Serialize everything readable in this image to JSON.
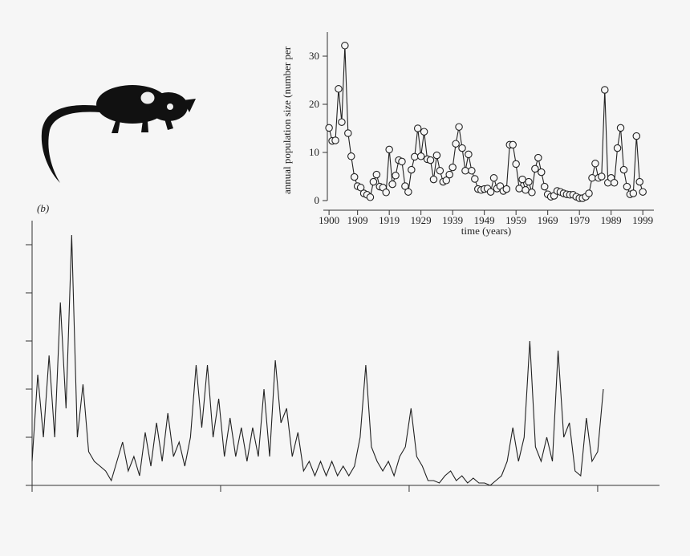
{
  "chart_data": [
    {
      "type": "line",
      "markers": true,
      "y_label": "annual population size (number per",
      "x_label": "time (years)",
      "x": [
        1900,
        1901,
        1902,
        1903,
        1904,
        1905,
        1906,
        1907,
        1908,
        1909,
        1910,
        1911,
        1912,
        1913,
        1914,
        1915,
        1916,
        1917,
        1918,
        1919,
        1920,
        1921,
        1922,
        1923,
        1924,
        1925,
        1926,
        1927,
        1928,
        1929,
        1930,
        1931,
        1932,
        1933,
        1934,
        1935,
        1936,
        1937,
        1938,
        1939,
        1940,
        1941,
        1942,
        1943,
        1944,
        1945,
        1946,
        1947,
        1948,
        1949,
        1950,
        1951,
        1952,
        1953,
        1954,
        1955,
        1956,
        1957,
        1958,
        1959,
        1960,
        1961,
        1962,
        1963,
        1964,
        1965,
        1966,
        1967,
        1968,
        1969,
        1970,
        1971,
        1972,
        1973,
        1974,
        1975,
        1976,
        1977,
        1978,
        1979,
        1980,
        1981,
        1982,
        1983,
        1984,
        1985,
        1986,
        1987,
        1988,
        1989,
        1990,
        1991,
        1992,
        1993,
        1994,
        1995,
        1996,
        1997,
        1998,
        1999
      ],
      "values": [
        15.1,
        12.4,
        12.5,
        23.2,
        16.3,
        32.2,
        14,
        9.2,
        4.9,
        3.0,
        2.7,
        1.5,
        1.2,
        0.7,
        3.9,
        5.4,
        2.9,
        2.7,
        1.7,
        10.6,
        3.4,
        5.2,
        8.4,
        8.1,
        3.0,
        1.8,
        6.4,
        9.1,
        15,
        9.2,
        14.3,
        8.6,
        8.4,
        4.4,
        9.4,
        6.2,
        3.9,
        4.2,
        5.4,
        6.9,
        11.8,
        15.3,
        10.9,
        6.2,
        9.6,
        6.2,
        4.5,
        2.4,
        2.2,
        2.4,
        2.5,
        1.8,
        4.7,
        2.5,
        3.0,
        2.0,
        2.4,
        11.6,
        11.6,
        7.6,
        2.5,
        4.4,
        2.2,
        3.9,
        1.7,
        6.6,
        8.9,
        5.9,
        2.9,
        1.3,
        0.8,
        1.0,
        2.0,
        1.8,
        1.5,
        1.3,
        1.2,
        1.2,
        0.8,
        0.5,
        0.5,
        0.8,
        1.5,
        4.7,
        7.7,
        4.7,
        5.0,
        23.0,
        3.7,
        4.7,
        3.7,
        10.9,
        15.1,
        6.4,
        2.9,
        1.3,
        1.5,
        13.4,
        3.9,
        1.8
      ],
      "xlim": [
        1898.2,
        2002.5
      ],
      "ylim": [
        0,
        35
      ],
      "xticks": [
        1900,
        1909,
        1919,
        1929,
        1939,
        1949,
        1959,
        1969,
        1979,
        1989,
        1999
      ],
      "yticks": [
        0,
        10,
        20,
        30
      ],
      "tick_labels": true,
      "color": "#222222"
    },
    {
      "type": "line",
      "markers": false,
      "panel_label": "(b)",
      "x": [
        0,
        3,
        6,
        9,
        12,
        15,
        18,
        21,
        24,
        27,
        30,
        33,
        36,
        39,
        42,
        45,
        48,
        51,
        54,
        57,
        60,
        63,
        66,
        69,
        72,
        75,
        78,
        81,
        84,
        87,
        90,
        93,
        96,
        99,
        102,
        105,
        108,
        111,
        114,
        117,
        120,
        123,
        126,
        129,
        132,
        135,
        138,
        141,
        144,
        147,
        150,
        153,
        156,
        159,
        162,
        165,
        168,
        171,
        174,
        177,
        180,
        183,
        186,
        189,
        192,
        195,
        198,
        201,
        204,
        207,
        210,
        213,
        216,
        219,
        222,
        225,
        228,
        231,
        234,
        237,
        240,
        243,
        246,
        249,
        252,
        255,
        258,
        261,
        264,
        267,
        270,
        273,
        276,
        279,
        282,
        285,
        288,
        291,
        294,
        297,
        300,
        303
      ],
      "values": [
        0.5,
        2.3,
        1.0,
        2.7,
        1.0,
        3.8,
        1.6,
        5.2,
        1.0,
        2.1,
        0.7,
        0.5,
        0.4,
        0.3,
        0.1,
        0.5,
        0.9,
        0.3,
        0.6,
        0.2,
        1.1,
        0.4,
        1.3,
        0.5,
        1.5,
        0.6,
        0.9,
        0.4,
        1.0,
        2.5,
        1.2,
        2.5,
        1.0,
        1.8,
        0.6,
        1.4,
        0.6,
        1.2,
        0.5,
        1.2,
        0.6,
        2.0,
        0.6,
        2.6,
        1.3,
        1.6,
        0.6,
        1.1,
        0.3,
        0.5,
        0.2,
        0.5,
        0.2,
        0.5,
        0.2,
        0.4,
        0.2,
        0.4,
        1.0,
        2.5,
        0.8,
        0.5,
        0.3,
        0.5,
        0.2,
        0.6,
        0.8,
        1.6,
        0.6,
        0.4,
        0.1,
        0.1,
        0.05,
        0.2,
        0.3,
        0.1,
        0.2,
        0.05,
        0.15,
        0.05,
        0.05,
        0,
        0.1,
        0.2,
        0.5,
        1.2,
        0.5,
        1.0,
        3.0,
        0.8,
        0.5,
        1.0,
        0.5,
        2.8,
        1.0,
        1.3,
        0.3,
        0.2,
        1.4,
        0.5,
        0.7,
        2.0
      ],
      "xlim": [
        0,
        332.8
      ],
      "ylim": [
        0,
        5.5
      ],
      "xticks": [
        0,
        100,
        200,
        300
      ],
      "yticks": [
        0,
        1,
        2,
        3,
        4,
        5
      ],
      "tick_labels": false,
      "color": "#222222"
    }
  ]
}
